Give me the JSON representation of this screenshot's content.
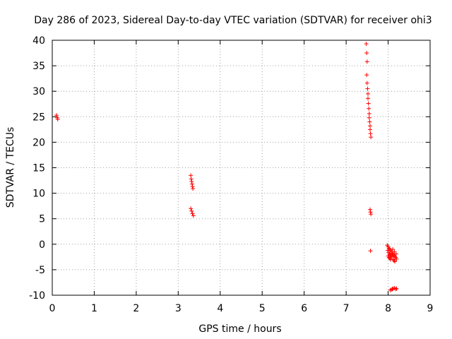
{
  "chart_data": {
    "type": "scatter",
    "title": "Day 286 of 2023, Sidereal Day-to-day VTEC variation (SDTVAR) for receiver ohi3",
    "xlabel": "GPS time / hours",
    "ylabel": "SDTVAR / TECUs",
    "xlim": [
      0,
      9
    ],
    "ylim": [
      -10,
      40
    ],
    "xticks": [
      0,
      1,
      2,
      3,
      4,
      5,
      6,
      7,
      8,
      9
    ],
    "yticks": [
      -10,
      -5,
      0,
      5,
      10,
      15,
      20,
      25,
      30,
      35,
      40
    ],
    "grid": true,
    "marker": "+",
    "colors": {
      "points": "#ff0000",
      "grid": "#a0a0a0",
      "axes": "#000000"
    },
    "series": [
      {
        "name": "ohi3",
        "points": [
          [
            0.1,
            25.3
          ],
          [
            0.12,
            24.8
          ],
          [
            0.13,
            24.5
          ],
          [
            3.3,
            13.5
          ],
          [
            3.31,
            12.8
          ],
          [
            3.32,
            12.3
          ],
          [
            3.33,
            11.8
          ],
          [
            3.34,
            11.3
          ],
          [
            3.35,
            10.9
          ],
          [
            3.3,
            7.0
          ],
          [
            3.32,
            6.5
          ],
          [
            3.34,
            6.0
          ],
          [
            3.36,
            5.6
          ],
          [
            7.48,
            39.3
          ],
          [
            7.49,
            37.5
          ],
          [
            7.5,
            35.8
          ],
          [
            7.49,
            33.2
          ],
          [
            7.5,
            31.6
          ],
          [
            7.51,
            30.5
          ],
          [
            7.52,
            29.5
          ],
          [
            7.52,
            28.6
          ],
          [
            7.53,
            27.6
          ],
          [
            7.54,
            26.6
          ],
          [
            7.55,
            25.6
          ],
          [
            7.55,
            24.8
          ],
          [
            7.56,
            24.0
          ],
          [
            7.57,
            23.2
          ],
          [
            7.57,
            22.5
          ],
          [
            7.58,
            21.7
          ],
          [
            7.59,
            21.0
          ],
          [
            7.57,
            6.8
          ],
          [
            7.58,
            6.3
          ],
          [
            7.59,
            5.9
          ],
          [
            7.58,
            -1.3
          ],
          [
            7.98,
            -0.2
          ],
          [
            8.0,
            -0.5
          ],
          [
            8.02,
            -0.8
          ],
          [
            8.04,
            -1.0
          ],
          [
            8.06,
            -1.2
          ],
          [
            8.08,
            -1.5
          ],
          [
            7.99,
            -1.2
          ],
          [
            8.01,
            -1.6
          ],
          [
            8.03,
            -1.9
          ],
          [
            8.05,
            -2.1
          ],
          [
            8.07,
            -2.3
          ],
          [
            8.09,
            -2.5
          ],
          [
            8.0,
            -2.3
          ],
          [
            8.02,
            -2.6
          ],
          [
            8.04,
            -2.8
          ],
          [
            8.06,
            -3.0
          ],
          [
            8.1,
            -1.8
          ],
          [
            8.12,
            -2.0
          ],
          [
            8.14,
            -2.2
          ],
          [
            8.16,
            -2.4
          ],
          [
            8.18,
            -2.6
          ],
          [
            8.2,
            -2.9
          ],
          [
            8.12,
            -3.0
          ],
          [
            8.14,
            -3.2
          ],
          [
            8.16,
            -3.4
          ],
          [
            8.11,
            -1.0
          ],
          [
            8.15,
            -1.5
          ],
          [
            8.19,
            -1.9
          ],
          [
            8.05,
            -9.0
          ],
          [
            8.08,
            -8.9
          ],
          [
            8.1,
            -8.8
          ],
          [
            8.12,
            -8.7
          ],
          [
            8.15,
            -8.6
          ],
          [
            8.18,
            -8.8
          ],
          [
            8.2,
            -8.7
          ]
        ]
      }
    ]
  }
}
